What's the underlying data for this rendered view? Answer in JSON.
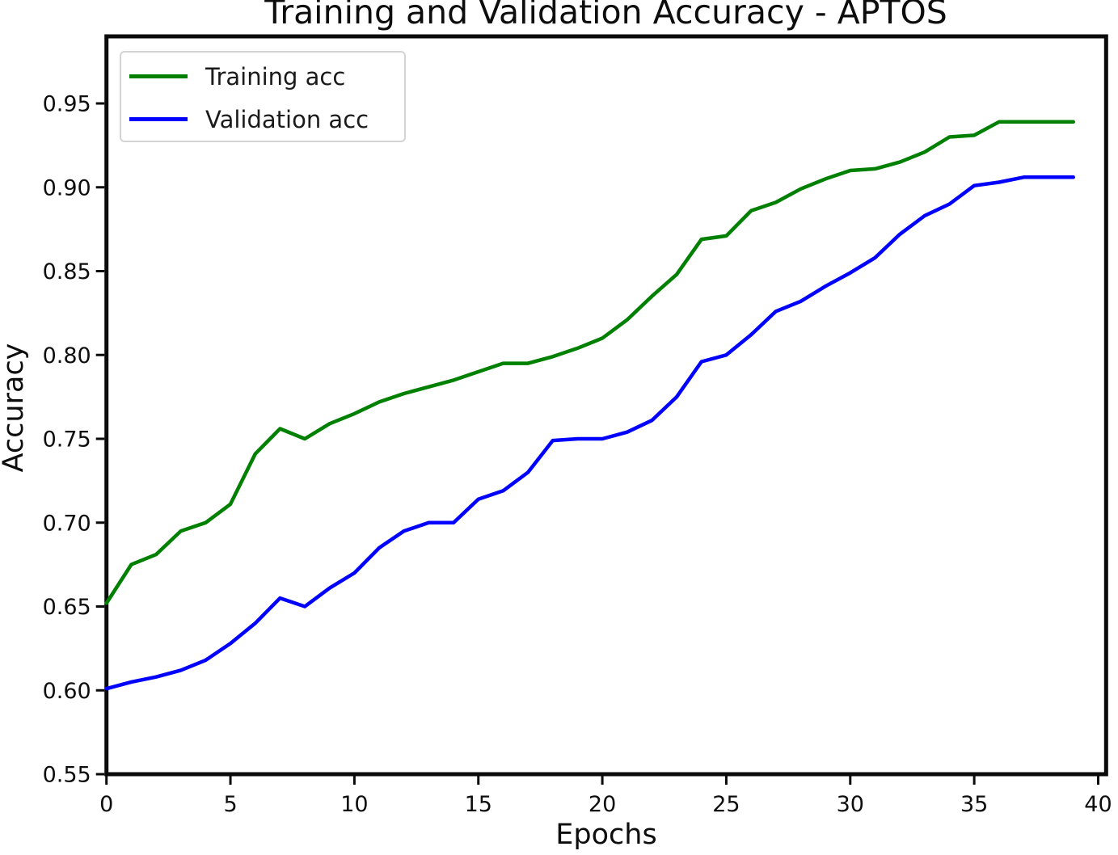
{
  "figure": {
    "background": "#ffffff",
    "text_color": "#0d0d0d"
  },
  "chart_data": {
    "type": "line",
    "title": "Training and Validation Accuracy - APTOS",
    "xlabel": "Epochs",
    "ylabel": "Accuracy",
    "grid": false,
    "legend_position": "upper left",
    "xlim": [
      0,
      40.32
    ],
    "ylim": [
      0.55,
      0.99
    ],
    "xticks": [
      0,
      5,
      10,
      15,
      20,
      25,
      30,
      35,
      40
    ],
    "yticks": [
      0.55,
      0.6,
      0.65,
      0.7,
      0.75,
      0.8,
      0.85,
      0.9,
      0.95
    ],
    "x": [
      0,
      1,
      2,
      3,
      4,
      5,
      6,
      7,
      8,
      9,
      10,
      11,
      12,
      13,
      14,
      15,
      16,
      17,
      18,
      19,
      20,
      21,
      22,
      23,
      24,
      25,
      26,
      27,
      28,
      29,
      30,
      31,
      32,
      33,
      34,
      35,
      36,
      37,
      38,
      39
    ],
    "series": [
      {
        "name": "Training acc",
        "color": "#008000",
        "values": [
          0.652,
          0.675,
          0.681,
          0.695,
          0.7,
          0.711,
          0.741,
          0.756,
          0.75,
          0.759,
          0.765,
          0.772,
          0.777,
          0.781,
          0.785,
          0.79,
          0.795,
          0.795,
          0.799,
          0.804,
          0.81,
          0.821,
          0.835,
          0.848,
          0.869,
          0.871,
          0.886,
          0.891,
          0.899,
          0.905,
          0.91,
          0.911,
          0.915,
          0.921,
          0.93,
          0.931,
          0.939,
          0.939,
          0.939,
          0.939
        ]
      },
      {
        "name": "Validation acc",
        "color": "#0000ff",
        "values": [
          0.601,
          0.605,
          0.608,
          0.612,
          0.618,
          0.628,
          0.64,
          0.655,
          0.65,
          0.661,
          0.67,
          0.685,
          0.695,
          0.7,
          0.7,
          0.714,
          0.719,
          0.73,
          0.749,
          0.75,
          0.75,
          0.754,
          0.761,
          0.775,
          0.796,
          0.8,
          0.812,
          0.826,
          0.832,
          0.841,
          0.849,
          0.858,
          0.872,
          0.883,
          0.89,
          0.901,
          0.903,
          0.906,
          0.906,
          0.906
        ]
      }
    ],
    "axis_color": "#0a0a0a"
  }
}
